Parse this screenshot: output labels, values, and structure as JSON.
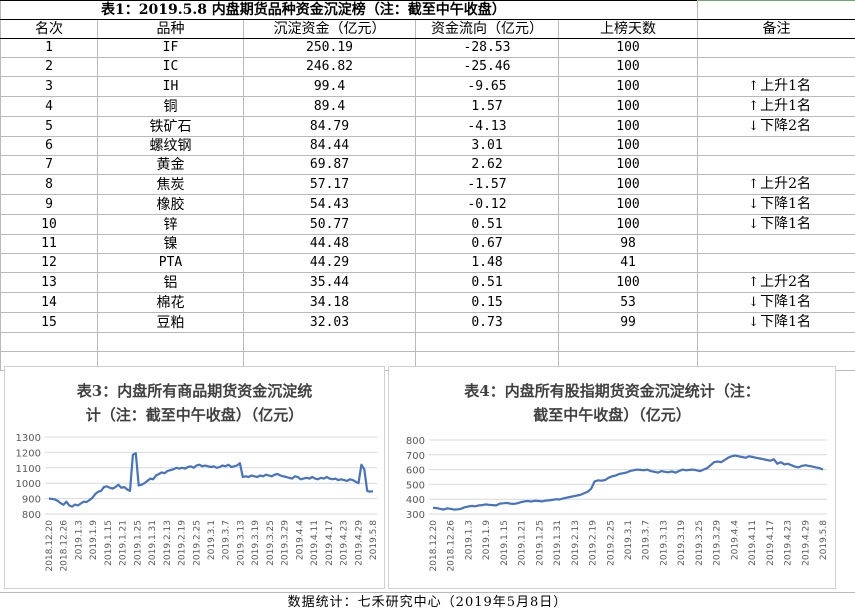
{
  "table1": {
    "title": "表1：2019.5.8 内盘期货品种资金沉淀榜（注：截至中午收盘）",
    "headers": [
      "名次",
      "品种",
      "沉淀资金（亿元）",
      "资金流向（亿元）",
      "上榜天数",
      "备注"
    ],
    "rows": [
      {
        "rank": "1",
        "name": "IF",
        "fund": "250.19",
        "flow": "-28.53",
        "days": "100",
        "note": "",
        "dir": ""
      },
      {
        "rank": "2",
        "name": "IC",
        "fund": "246.82",
        "flow": "-25.46",
        "days": "100",
        "note": "",
        "dir": ""
      },
      {
        "rank": "3",
        "name": "IH",
        "fund": "99.4",
        "flow": "-9.65",
        "days": "100",
        "note": "上升1名",
        "dir": "up"
      },
      {
        "rank": "4",
        "name": "铜",
        "fund": "89.4",
        "flow": "1.57",
        "days": "100",
        "note": "上升1名",
        "dir": "up"
      },
      {
        "rank": "5",
        "name": "铁矿石",
        "fund": "84.79",
        "flow": "-4.13",
        "days": "100",
        "note": "下降2名",
        "dir": "down"
      },
      {
        "rank": "6",
        "name": "螺纹钢",
        "fund": "84.44",
        "flow": "3.01",
        "days": "100",
        "note": "",
        "dir": ""
      },
      {
        "rank": "7",
        "name": "黄金",
        "fund": "69.87",
        "flow": "2.62",
        "days": "100",
        "note": "",
        "dir": ""
      },
      {
        "rank": "8",
        "name": "焦炭",
        "fund": "57.17",
        "flow": "-1.57",
        "days": "100",
        "note": "上升2名",
        "dir": "up"
      },
      {
        "rank": "9",
        "name": "橡胶",
        "fund": "54.43",
        "flow": "-0.12",
        "days": "100",
        "note": "下降1名",
        "dir": "down"
      },
      {
        "rank": "10",
        "name": "锌",
        "fund": "50.77",
        "flow": "0.51",
        "days": "100",
        "note": "下降1名",
        "dir": "down"
      },
      {
        "rank": "11",
        "name": "镍",
        "fund": "44.48",
        "flow": "0.67",
        "days": "98",
        "note": "",
        "dir": ""
      },
      {
        "rank": "12",
        "name": "PTA",
        "fund": "44.29",
        "flow": "1.48",
        "days": "41",
        "note": "",
        "dir": ""
      },
      {
        "rank": "13",
        "name": "铝",
        "fund": "35.44",
        "flow": "0.51",
        "days": "100",
        "note": "上升2名",
        "dir": "up"
      },
      {
        "rank": "14",
        "name": "棉花",
        "fund": "34.18",
        "flow": "0.15",
        "days": "53",
        "note": "下降1名",
        "dir": "down"
      },
      {
        "rank": "15",
        "name": "豆粕",
        "fund": "32.03",
        "flow": "0.73",
        "days": "99",
        "note": "下降1名",
        "dir": "down"
      }
    ]
  },
  "icons": {
    "up": "↑",
    "down": "↓"
  },
  "chart_data": [
    {
      "type": "line",
      "title": "表3：内盘所有商品期货资金沉淀统计（注：截至中午收盘）（亿元）",
      "title_lines": [
        "表3：内盘所有商品期货资金沉淀统",
        "计（注：截至中午收盘）（亿元）"
      ],
      "ylim": [
        800,
        1300
      ],
      "yticks": [
        "1300",
        "1200",
        "1100",
        "1000",
        "900",
        "800"
      ],
      "xticks": [
        "2018.12.20",
        "2018.12.26",
        "2019.1.3",
        "2019.1.9",
        "2019.1.15",
        "2019.1.21",
        "2019.1.25",
        "2019.1.31",
        "2019.2.13",
        "2019.2.19",
        "2019.2.25",
        "2019.3.1",
        "2019.3.7",
        "2019.3.13",
        "2019.3.19",
        "2019.3.25",
        "2019.3.29",
        "2019.4.4",
        "2019.4.11",
        "2019.4.17",
        "2019.4.23",
        "2019.4.29",
        "2019.5.8"
      ],
      "color": "#4472c4",
      "values": [
        900,
        898,
        895,
        885,
        870,
        860,
        880,
        855,
        848,
        862,
        855,
        868,
        880,
        878,
        890,
        905,
        930,
        945,
        950,
        975,
        980,
        970,
        965,
        975,
        990,
        970,
        975,
        960,
        950,
        1185,
        1195,
        985,
        990,
        1000,
        1015,
        1030,
        1025,
        1050,
        1060,
        1070,
        1065,
        1080,
        1085,
        1090,
        1100,
        1095,
        1100,
        1095,
        1105,
        1110,
        1100,
        1115,
        1120,
        1110,
        1115,
        1110,
        1105,
        1110,
        1100,
        1105,
        1115,
        1110,
        1120,
        1105,
        1110,
        1115,
        1130,
        1040,
        1045,
        1040,
        1050,
        1045,
        1040,
        1050,
        1045,
        1055,
        1050,
        1045,
        1055,
        1060,
        1050,
        1045,
        1040,
        1035,
        1030,
        1045,
        1040,
        1025,
        1030,
        1035,
        1030,
        1040,
        1030,
        1025,
        1035,
        1030,
        1040,
        1030,
        1025,
        1030,
        1020,
        1025,
        1020,
        1015,
        1025,
        1020,
        1010,
        1000,
        1120,
        1090,
        950,
        945,
        948
      ]
    },
    {
      "type": "line",
      "title": "表4：内盘所有股指期货资金沉淀统计（注：截至中午收盘）（亿元）",
      "title_lines": [
        "表4：内盘所有股指期货资金沉淀统计（注：",
        "截至中午收盘）（亿元）"
      ],
      "ylim": [
        300,
        800
      ],
      "yticks": [
        "800",
        "700",
        "600",
        "500",
        "400",
        "300"
      ],
      "xticks": [
        "2018.12.20",
        "2018.12.26",
        "2019.1.3",
        "2019.1.9",
        "2019.1.15",
        "2019.1.21",
        "2019.1.25",
        "2019.1.31",
        "2019.2.13",
        "2019.2.19",
        "2019.2.25",
        "2019.3.1",
        "2019.3.7",
        "2019.3.13",
        "2019.3.19",
        "2019.3.25",
        "2019.3.29",
        "2019.4.4",
        "2019.4.11",
        "2019.4.17",
        "2019.4.23",
        "2019.4.29",
        "2019.5.8"
      ],
      "color": "#4472c4",
      "values": [
        342,
        340,
        335,
        330,
        338,
        335,
        330,
        332,
        335,
        345,
        350,
        355,
        352,
        358,
        360,
        365,
        362,
        360,
        358,
        370,
        372,
        375,
        370,
        368,
        372,
        380,
        385,
        388,
        384,
        390,
        388,
        385,
        390,
        392,
        395,
        400,
        398,
        405,
        410,
        415,
        420,
        425,
        430,
        440,
        450,
        470,
        520,
        528,
        525,
        530,
        545,
        555,
        560,
        570,
        575,
        580,
        590,
        595,
        600,
        598,
        595,
        600,
        590,
        585,
        580,
        590,
        585,
        582,
        588,
        580,
        590,
        600,
        595,
        598,
        600,
        595,
        590,
        600,
        610,
        630,
        650,
        655,
        650,
        665,
        680,
        690,
        695,
        690,
        685,
        680,
        690,
        685,
        680,
        675,
        670,
        665,
        660,
        670,
        640,
        650,
        635,
        640,
        630,
        620,
        615,
        625,
        630,
        625,
        620,
        615,
        610,
        600
      ]
    }
  ],
  "footer": "数据统计：七禾研究中心（2019年5月8日）"
}
